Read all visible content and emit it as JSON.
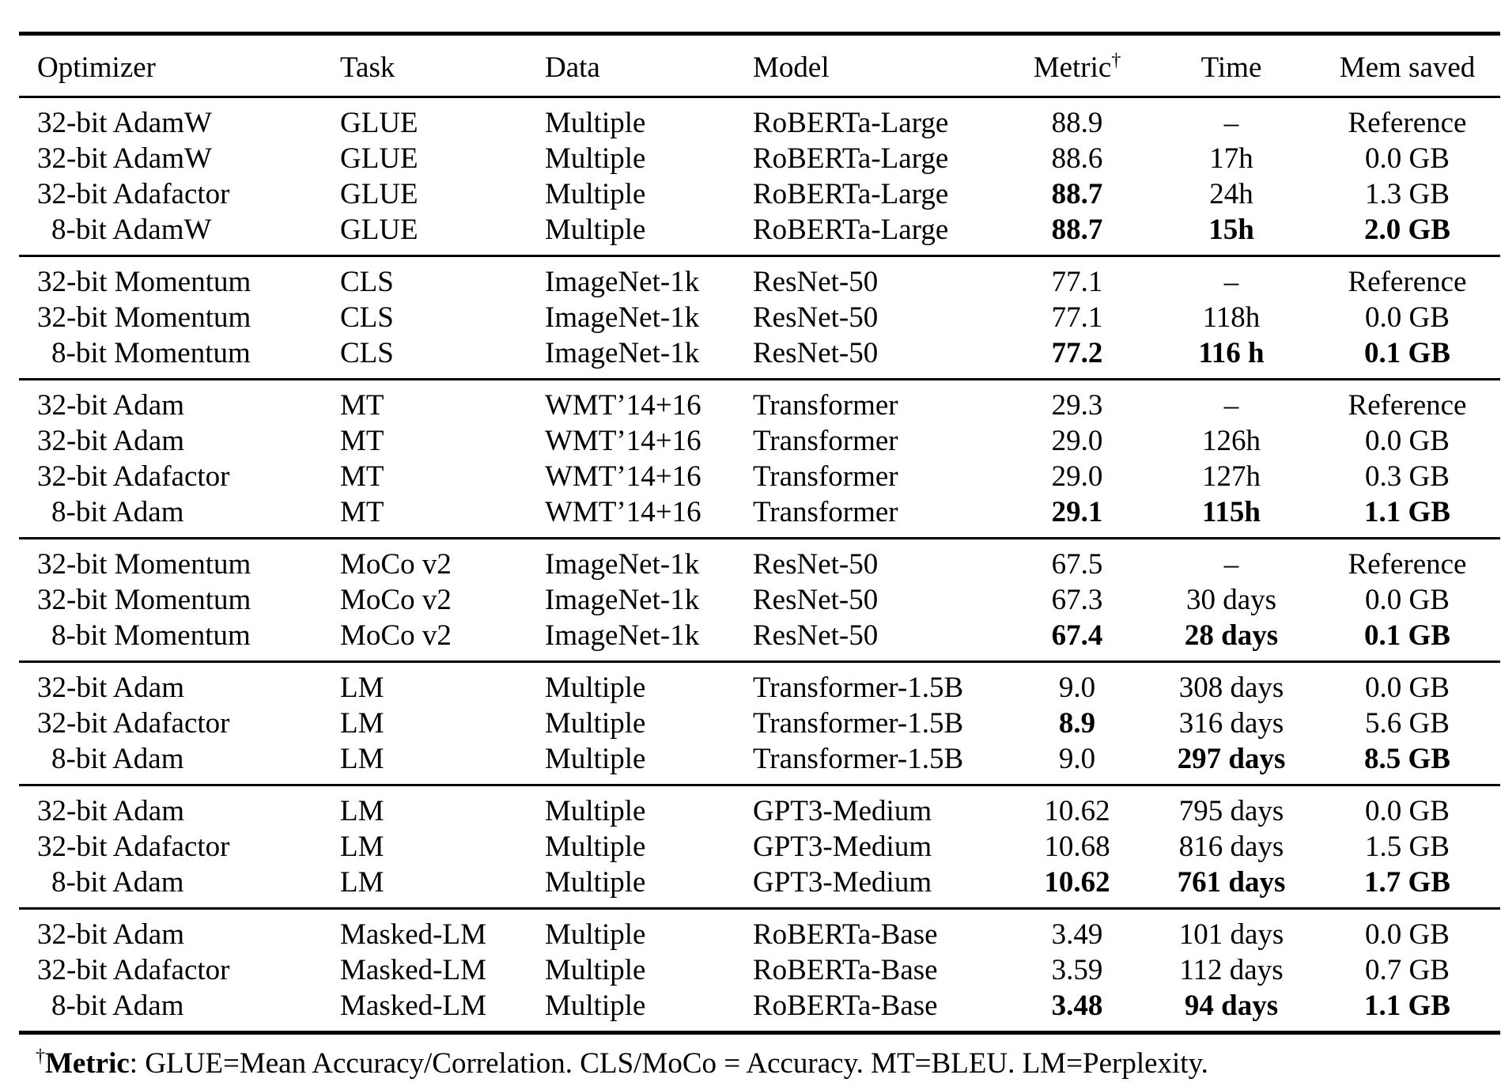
{
  "page": {
    "background_color": "#ffffff",
    "text_color": "#000000"
  },
  "table": {
    "header": {
      "columns": [
        {
          "key": "optimizer",
          "label": "Optimizer"
        },
        {
          "key": "task",
          "label": "Task"
        },
        {
          "key": "data",
          "label": "Data"
        },
        {
          "key": "model",
          "label": "Model"
        },
        {
          "key": "metric",
          "label": "Metric",
          "superscript": "†"
        },
        {
          "key": "time",
          "label": "Time"
        },
        {
          "key": "mem",
          "label": "Mem saved"
        }
      ]
    },
    "groups": [
      {
        "rows": [
          {
            "cells": [
              {
                "text": "32-bit AdamW"
              },
              {
                "text": "GLUE"
              },
              {
                "text": "Multiple"
              },
              {
                "text": "RoBERTa-Large"
              },
              {
                "text": "88.9"
              },
              {
                "text": "–"
              },
              {
                "text": "Reference"
              }
            ]
          },
          {
            "cells": [
              {
                "text": "32-bit AdamW"
              },
              {
                "text": "GLUE"
              },
              {
                "text": "Multiple"
              },
              {
                "text": "RoBERTa-Large"
              },
              {
                "text": "88.6"
              },
              {
                "text": "17h"
              },
              {
                "text": "0.0 GB"
              }
            ]
          },
          {
            "cells": [
              {
                "text": "32-bit Adafactor"
              },
              {
                "text": "GLUE"
              },
              {
                "text": "Multiple"
              },
              {
                "text": "RoBERTa-Large"
              },
              {
                "text": "88.7",
                "bold": true
              },
              {
                "text": "24h"
              },
              {
                "text": "1.3 GB"
              }
            ]
          },
          {
            "cells": [
              {
                "text": "8-bit AdamW"
              },
              {
                "text": "GLUE"
              },
              {
                "text": "Multiple"
              },
              {
                "text": "RoBERTa-Large"
              },
              {
                "text": "88.7",
                "bold": true
              },
              {
                "text": "15h",
                "bold": true
              },
              {
                "text": "2.0 GB",
                "bold": true
              }
            ]
          }
        ]
      },
      {
        "rows": [
          {
            "cells": [
              {
                "text": "32-bit Momentum"
              },
              {
                "text": "CLS"
              },
              {
                "text": "ImageNet-1k"
              },
              {
                "text": "ResNet-50"
              },
              {
                "text": "77.1"
              },
              {
                "text": "–"
              },
              {
                "text": "Reference"
              }
            ]
          },
          {
            "cells": [
              {
                "text": "32-bit Momentum"
              },
              {
                "text": "CLS"
              },
              {
                "text": "ImageNet-1k"
              },
              {
                "text": "ResNet-50"
              },
              {
                "text": "77.1"
              },
              {
                "text": "118h"
              },
              {
                "text": "0.0 GB"
              }
            ]
          },
          {
            "cells": [
              {
                "text": "8-bit Momentum"
              },
              {
                "text": "CLS"
              },
              {
                "text": "ImageNet-1k"
              },
              {
                "text": "ResNet-50"
              },
              {
                "text": "77.2",
                "bold": true
              },
              {
                "text": "116 h",
                "bold": true
              },
              {
                "text": "0.1 GB",
                "bold": true
              }
            ]
          }
        ]
      },
      {
        "rows": [
          {
            "cells": [
              {
                "text": "32-bit Adam"
              },
              {
                "text": "MT"
              },
              {
                "text": "WMT’14+16"
              },
              {
                "text": "Transformer"
              },
              {
                "text": "29.3"
              },
              {
                "text": "–"
              },
              {
                "text": "Reference"
              }
            ]
          },
          {
            "cells": [
              {
                "text": "32-bit Adam"
              },
              {
                "text": "MT"
              },
              {
                "text": "WMT’14+16"
              },
              {
                "text": "Transformer"
              },
              {
                "text": "29.0"
              },
              {
                "text": "126h"
              },
              {
                "text": "0.0 GB"
              }
            ]
          },
          {
            "cells": [
              {
                "text": "32-bit Adafactor"
              },
              {
                "text": "MT"
              },
              {
                "text": "WMT’14+16"
              },
              {
                "text": "Transformer"
              },
              {
                "text": "29.0"
              },
              {
                "text": "127h"
              },
              {
                "text": "0.3 GB"
              }
            ]
          },
          {
            "cells": [
              {
                "text": "8-bit Adam"
              },
              {
                "text": "MT"
              },
              {
                "text": "WMT’14+16"
              },
              {
                "text": "Transformer"
              },
              {
                "text": "29.1",
                "bold": true
              },
              {
                "text": "115h",
                "bold": true
              },
              {
                "text": "1.1 GB",
                "bold": true
              }
            ]
          }
        ]
      },
      {
        "rows": [
          {
            "cells": [
              {
                "text": "32-bit Momentum"
              },
              {
                "text": "MoCo v2"
              },
              {
                "text": "ImageNet-1k"
              },
              {
                "text": "ResNet-50"
              },
              {
                "text": "67.5"
              },
              {
                "text": "–"
              },
              {
                "text": "Reference"
              }
            ]
          },
          {
            "cells": [
              {
                "text": "32-bit Momentum"
              },
              {
                "text": "MoCo v2"
              },
              {
                "text": "ImageNet-1k"
              },
              {
                "text": "ResNet-50"
              },
              {
                "text": "67.3"
              },
              {
                "text": "30 days"
              },
              {
                "text": "0.0 GB"
              }
            ]
          },
          {
            "cells": [
              {
                "text": "8-bit Momentum"
              },
              {
                "text": "MoCo v2"
              },
              {
                "text": "ImageNet-1k"
              },
              {
                "text": "ResNet-50"
              },
              {
                "text": "67.4",
                "bold": true
              },
              {
                "text": "28 days",
                "bold": true
              },
              {
                "text": "0.1 GB",
                "bold": true
              }
            ]
          }
        ]
      },
      {
        "rows": [
          {
            "cells": [
              {
                "text": "32-bit Adam"
              },
              {
                "text": "LM"
              },
              {
                "text": "Multiple"
              },
              {
                "text": "Transformer-1.5B"
              },
              {
                "text": "9.0"
              },
              {
                "text": "308 days"
              },
              {
                "text": "0.0 GB"
              }
            ]
          },
          {
            "cells": [
              {
                "text": "32-bit Adafactor"
              },
              {
                "text": "LM"
              },
              {
                "text": "Multiple"
              },
              {
                "text": "Transformer-1.5B"
              },
              {
                "text": "8.9",
                "bold": true
              },
              {
                "text": "316 days"
              },
              {
                "text": "5.6 GB"
              }
            ]
          },
          {
            "cells": [
              {
                "text": "8-bit Adam"
              },
              {
                "text": "LM"
              },
              {
                "text": "Multiple"
              },
              {
                "text": "Transformer-1.5B"
              },
              {
                "text": "9.0"
              },
              {
                "text": "297 days",
                "bold": true
              },
              {
                "text": "8.5 GB",
                "bold": true
              }
            ]
          }
        ]
      },
      {
        "rows": [
          {
            "cells": [
              {
                "text": "32-bit Adam"
              },
              {
                "text": "LM"
              },
              {
                "text": "Multiple"
              },
              {
                "text": "GPT3-Medium"
              },
              {
                "text": "10.62"
              },
              {
                "text": "795 days"
              },
              {
                "text": "0.0 GB"
              }
            ]
          },
          {
            "cells": [
              {
                "text": "32-bit Adafactor"
              },
              {
                "text": "LM"
              },
              {
                "text": "Multiple"
              },
              {
                "text": "GPT3-Medium"
              },
              {
                "text": "10.68"
              },
              {
                "text": "816 days"
              },
              {
                "text": "1.5 GB"
              }
            ]
          },
          {
            "cells": [
              {
                "text": "8-bit Adam"
              },
              {
                "text": "LM"
              },
              {
                "text": "Multiple"
              },
              {
                "text": "GPT3-Medium"
              },
              {
                "text": "10.62",
                "bold": true
              },
              {
                "text": "761 days",
                "bold": true
              },
              {
                "text": "1.7 GB",
                "bold": true
              }
            ]
          }
        ]
      },
      {
        "rows": [
          {
            "cells": [
              {
                "text": "32-bit Adam"
              },
              {
                "text": "Masked-LM"
              },
              {
                "text": "Multiple"
              },
              {
                "text": "RoBERTa-Base"
              },
              {
                "text": "3.49"
              },
              {
                "text": "101 days"
              },
              {
                "text": "0.0 GB"
              }
            ]
          },
          {
            "cells": [
              {
                "text": "32-bit Adafactor"
              },
              {
                "text": "Masked-LM"
              },
              {
                "text": "Multiple"
              },
              {
                "text": "RoBERTa-Base"
              },
              {
                "text": "3.59"
              },
              {
                "text": "112 days"
              },
              {
                "text": "0.7 GB"
              }
            ]
          },
          {
            "cells": [
              {
                "text": "8-bit Adam"
              },
              {
                "text": "Masked-LM"
              },
              {
                "text": "Multiple"
              },
              {
                "text": "RoBERTa-Base"
              },
              {
                "text": "3.48",
                "bold": true
              },
              {
                "text": "94 days",
                "bold": true
              },
              {
                "text": "1.1 GB",
                "bold": true
              }
            ]
          }
        ]
      }
    ]
  },
  "footnote": {
    "superscript": "†",
    "term": "Metric",
    "text": ": GLUE=Mean Accuracy/Correlation. CLS/MoCo = Accuracy. MT=BLEU. LM=Perplexity."
  }
}
